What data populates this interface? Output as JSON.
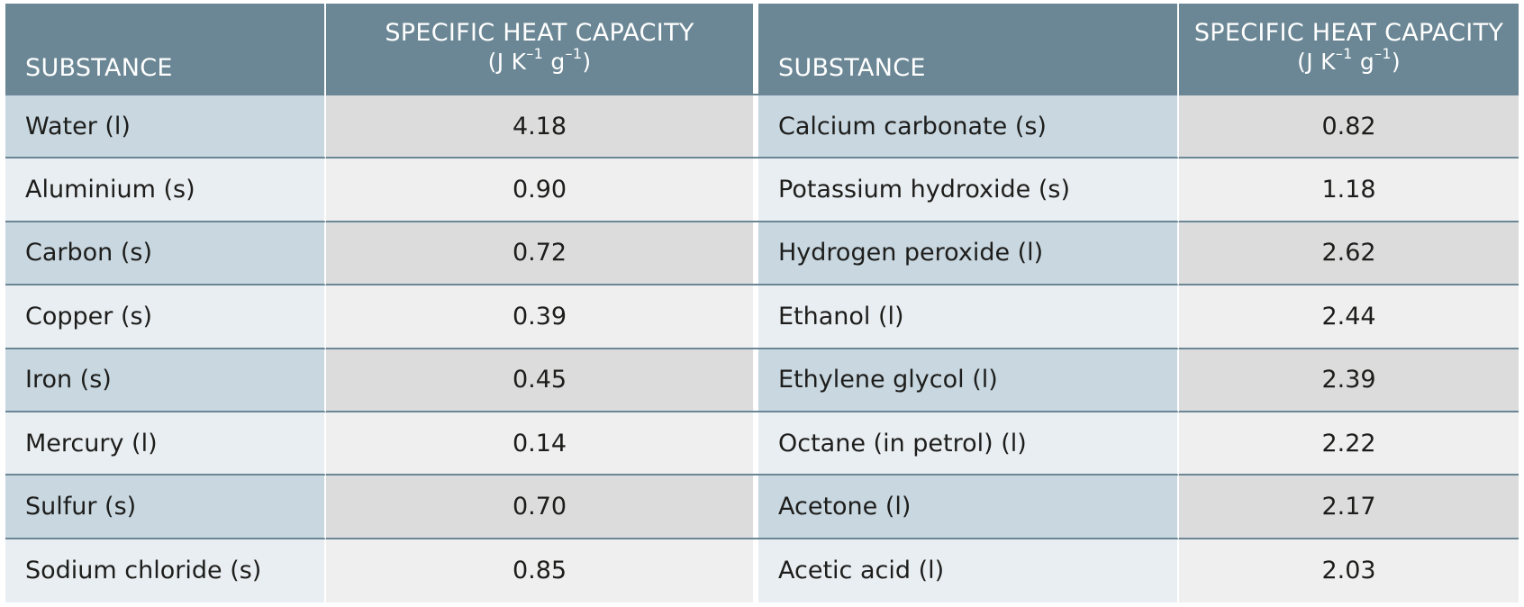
{
  "table": {
    "headers": {
      "substance": "SUBSTANCE",
      "capacity_title": "SPECIFIC HEAT CAPACITY",
      "unit_open": "(",
      "unit_j": "J",
      "unit_k": "K",
      "unit_k_exp": "–1",
      "unit_g": "g",
      "unit_g_exp": "–1",
      "unit_close": ")"
    },
    "left_rows": [
      {
        "substance": "Water (l)",
        "value": "4.18"
      },
      {
        "substance": "Aluminium (s)",
        "value": "0.90"
      },
      {
        "substance": "Carbon (s)",
        "value": "0.72"
      },
      {
        "substance": "Copper (s)",
        "value": "0.39"
      },
      {
        "substance": "Iron (s)",
        "value": "0.45"
      },
      {
        "substance": "Mercury (l)",
        "value": "0.14"
      },
      {
        "substance": "Sulfur (s)",
        "value": "0.70"
      },
      {
        "substance": "Sodium chloride (s)",
        "value": "0.85"
      }
    ],
    "right_rows": [
      {
        "substance": "Calcium carbonate (s)",
        "value": "0.82"
      },
      {
        "substance": "Potassium hydroxide (s)",
        "value": "1.18"
      },
      {
        "substance": "Hydrogen peroxide (l)",
        "value": "2.62"
      },
      {
        "substance": "Ethanol (l)",
        "value": "2.44"
      },
      {
        "substance": "Ethylene glycol (l)",
        "value": "2.39"
      },
      {
        "substance": "Octane (in petrol) (l)",
        "value": "2.22"
      },
      {
        "substance": "Acetone (l)",
        "value": "2.17"
      },
      {
        "substance": "Acetic acid (l)",
        "value": "2.03"
      }
    ],
    "colors": {
      "header_bg": "#6b8795",
      "substance_dark": "#c8d7e0",
      "substance_light": "#e9eef2",
      "value_dark": "#dcdcdc",
      "value_light": "#efefef"
    }
  }
}
